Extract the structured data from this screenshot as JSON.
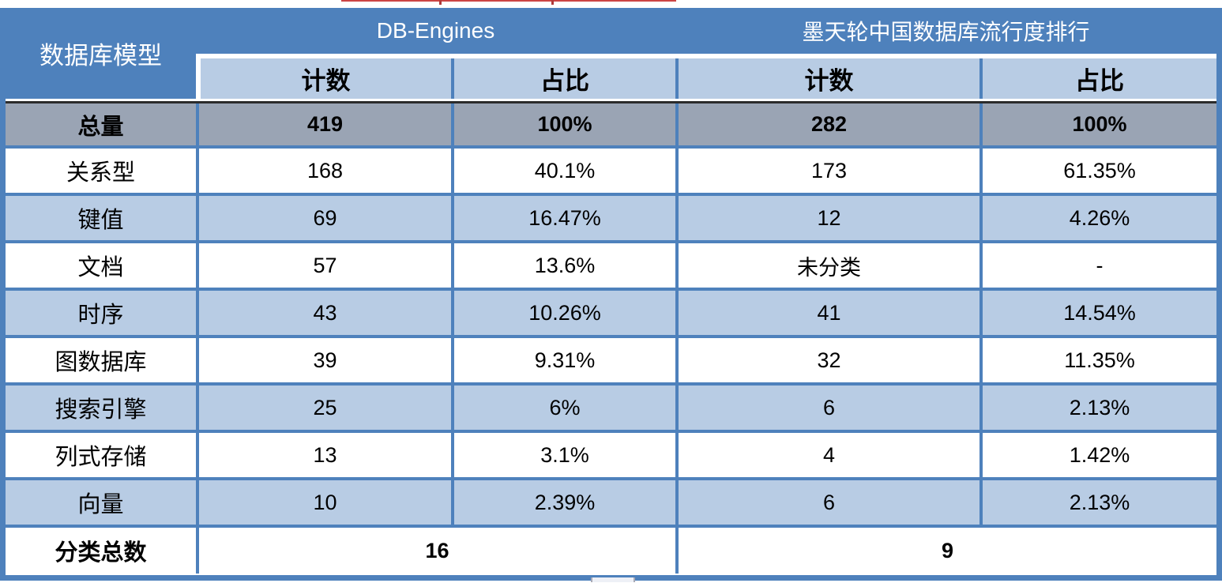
{
  "colors": {
    "header_blue": "#4E81BC",
    "light_blue_stripe": "#B8CCE4",
    "total_row_gray": "#9AA4B4",
    "border_blue": "#4E81BC",
    "total_row_top_border": "#2B2B2B",
    "header_text": "#FFFFFF",
    "body_text": "#000000",
    "artifact_red": "#C44444"
  },
  "chart_data": {
    "type": "table",
    "corner_header": "数据库模型",
    "group_headers": [
      "DB-Engines",
      "墨天轮中国数据库流行度排行"
    ],
    "sub_headers": [
      "计数",
      "占比",
      "计数",
      "占比"
    ],
    "rows": [
      {
        "label": "总量",
        "cells": [
          "419",
          "100%",
          "282",
          "100%"
        ],
        "emphasis": true,
        "stripe": "gray"
      },
      {
        "label": "关系型",
        "cells": [
          "168",
          "40.1%",
          "173",
          "61.35%"
        ],
        "emphasis": false,
        "stripe": "white"
      },
      {
        "label": "键值",
        "cells": [
          "69",
          "16.47%",
          "12",
          "4.26%"
        ],
        "emphasis": false,
        "stripe": "blue"
      },
      {
        "label": "文档",
        "cells": [
          "57",
          "13.6%",
          "未分类",
          "-"
        ],
        "emphasis": false,
        "stripe": "white"
      },
      {
        "label": "时序",
        "cells": [
          "43",
          "10.26%",
          "41",
          "14.54%"
        ],
        "emphasis": false,
        "stripe": "blue"
      },
      {
        "label": "图数据库",
        "cells": [
          "39",
          "9.31%",
          "32",
          "11.35%"
        ],
        "emphasis": false,
        "stripe": "white"
      },
      {
        "label": "搜索引擎",
        "cells": [
          "25",
          "6%",
          "6",
          "2.13%"
        ],
        "emphasis": false,
        "stripe": "blue"
      },
      {
        "label": "列式存储",
        "cells": [
          "13",
          "3.1%",
          "4",
          "1.42%"
        ],
        "emphasis": false,
        "stripe": "white"
      },
      {
        "label": "向量",
        "cells": [
          "10",
          "2.39%",
          "6",
          "2.13%"
        ],
        "emphasis": false,
        "stripe": "blue"
      }
    ],
    "footer": {
      "label": "分类总数",
      "db_engines_total": "16",
      "modb_total": "9"
    }
  }
}
